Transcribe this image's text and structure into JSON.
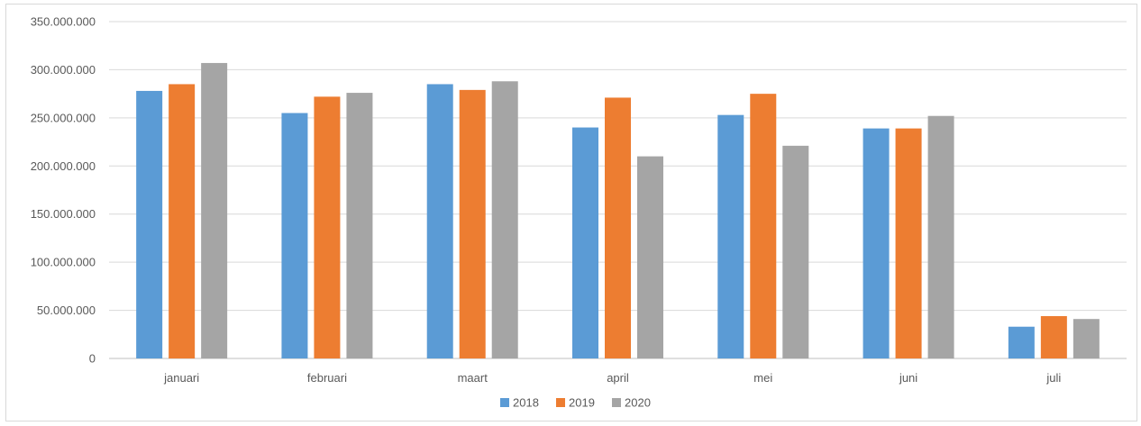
{
  "chart_data": {
    "type": "bar",
    "title": "",
    "xlabel": "",
    "ylabel": "",
    "categories": [
      "januari",
      "februari",
      "maart",
      "april",
      "mei",
      "juni",
      "juli"
    ],
    "series": [
      {
        "name": "2018",
        "color": "#5b9bd5",
        "values": [
          278000000,
          255000000,
          285000000,
          240000000,
          253000000,
          239000000,
          33000000
        ]
      },
      {
        "name": "2019",
        "color": "#ed7d31",
        "values": [
          285000000,
          272000000,
          279000000,
          271000000,
          275000000,
          239000000,
          44000000
        ]
      },
      {
        "name": "2020",
        "color": "#a5a5a5",
        "values": [
          307000000,
          276000000,
          288000000,
          210000000,
          221000000,
          252000000,
          41000000
        ]
      }
    ],
    "ylim": [
      0,
      350000000
    ],
    "y_ticks": [
      0,
      50000000,
      100000000,
      150000000,
      200000000,
      250000000,
      300000000,
      350000000
    ],
    "y_tick_labels": [
      "0",
      "50.000.000",
      "100.000.000",
      "150.000.000",
      "200.000.000",
      "250.000.000",
      "300.000.000",
      "350.000.000"
    ],
    "grid": true,
    "legend_position": "bottom"
  }
}
